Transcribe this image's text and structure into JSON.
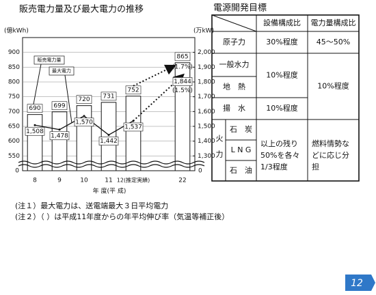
{
  "chart_data": {
    "type": "bar_line",
    "title": "販売電力量及び最大電力の推移",
    "y_label": "(億kWh)",
    "y2_label": "(万kW)",
    "x_label": "年 度(平 成)",
    "categories": [
      "8",
      "9",
      "10",
      "11",
      "12(推定実績)",
      "22"
    ],
    "series": [
      {
        "name": "販売電力量",
        "type": "bar",
        "color": "#ffffff",
        "values": [
          690,
          699,
          720,
          731,
          752,
          865
        ],
        "growth_label": "(1.7%)"
      },
      {
        "name": "最大電力",
        "type": "line",
        "axis": "y2",
        "color": "#111111",
        "values": [
          1508,
          1478,
          1570,
          1442,
          1537,
          1844
        ],
        "value_labels": [
          "1,508",
          "1,478",
          "1,570",
          "1,442",
          "1,537",
          "1,844"
        ],
        "growth_label": "(1.5%)"
      }
    ],
    "ylim": [
      500,
      950
    ],
    "yticks": [
      550,
      600,
      650,
      700,
      750,
      800,
      850,
      900
    ],
    "y2lim": [
      1200,
      2100
    ],
    "y2ticks": [
      {
        "value": 1300,
        "label": "1,300"
      },
      {
        "value": 1400,
        "label": "1,400"
      },
      {
        "value": 1500,
        "label": "1,500"
      },
      {
        "value": 1600,
        "label": "1,600"
      },
      {
        "value": 1700,
        "label": "1,700"
      },
      {
        "value": 1800,
        "label": "1,800"
      },
      {
        "value": 1900,
        "label": "1,900"
      },
      {
        "value": 2000,
        "label": "2,000"
      }
    ],
    "y_break_label": "0",
    "y2_break_label": "0",
    "grid": true
  },
  "table": {
    "title": "電源開発目標",
    "columns": [
      "設備構成比",
      "電力量構成比"
    ],
    "rows": [
      {
        "label": "原子力",
        "equipment": "30%程度",
        "energy": "45〜50%"
      },
      {
        "label": "一般水力"
      },
      {
        "label": "地　熱"
      },
      {
        "label": "揚　水",
        "equipment": "10%程度"
      }
    ],
    "hydro_geo_equipment": "10%程度",
    "hydro_energy": "10%程度",
    "thermal": {
      "label": "火力",
      "fuels": [
        "石　炭",
        "L N G",
        "石　油"
      ],
      "equipment": [
        "以上の残り",
        "50%を各々",
        "1/3程度"
      ],
      "energy": [
        "燃料情勢な",
        "どに応じ分",
        "担"
      ]
    }
  },
  "notes": [
    "(注１）最大電力は、送電端最大３日平均電力",
    "(注２）（ ）は平成11年度からの年平均伸び率（気温等補正後）"
  ],
  "page_number": "12"
}
